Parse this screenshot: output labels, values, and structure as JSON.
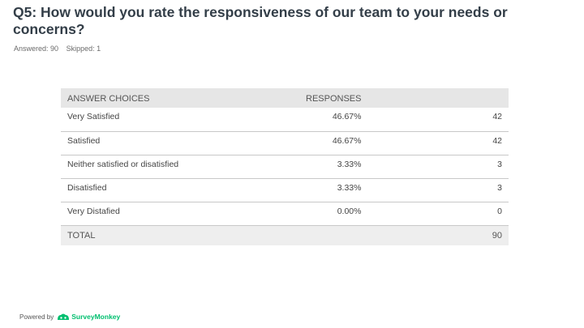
{
  "question": {
    "title": "Q5: How would you rate the responsiveness of our team to your needs or concerns?",
    "answered_label": "Answered: 90",
    "skipped_label": "Skipped: 1"
  },
  "table": {
    "headers": {
      "choice": "ANSWER CHOICES",
      "responses": "RESPONSES",
      "count": ""
    },
    "rows": [
      {
        "choice": "Very Satisfied",
        "percent": "46.67%",
        "count": "42"
      },
      {
        "choice": "Satisfied",
        "percent": "46.67%",
        "count": "42"
      },
      {
        "choice": "Neither satisfied or disatisfied",
        "percent": "3.33%",
        "count": "3"
      },
      {
        "choice": "Disatisfied",
        "percent": "3.33%",
        "count": "3"
      },
      {
        "choice": "Very Distafied",
        "percent": "0.00%",
        "count": "0"
      }
    ],
    "total": {
      "label": "TOTAL",
      "count": "90"
    }
  },
  "footer": {
    "powered_by": "Powered by",
    "brand": "SurveyMonkey",
    "brand_color": "#00bf6f",
    "logo_icon": "surveymonkey-logo-icon"
  }
}
